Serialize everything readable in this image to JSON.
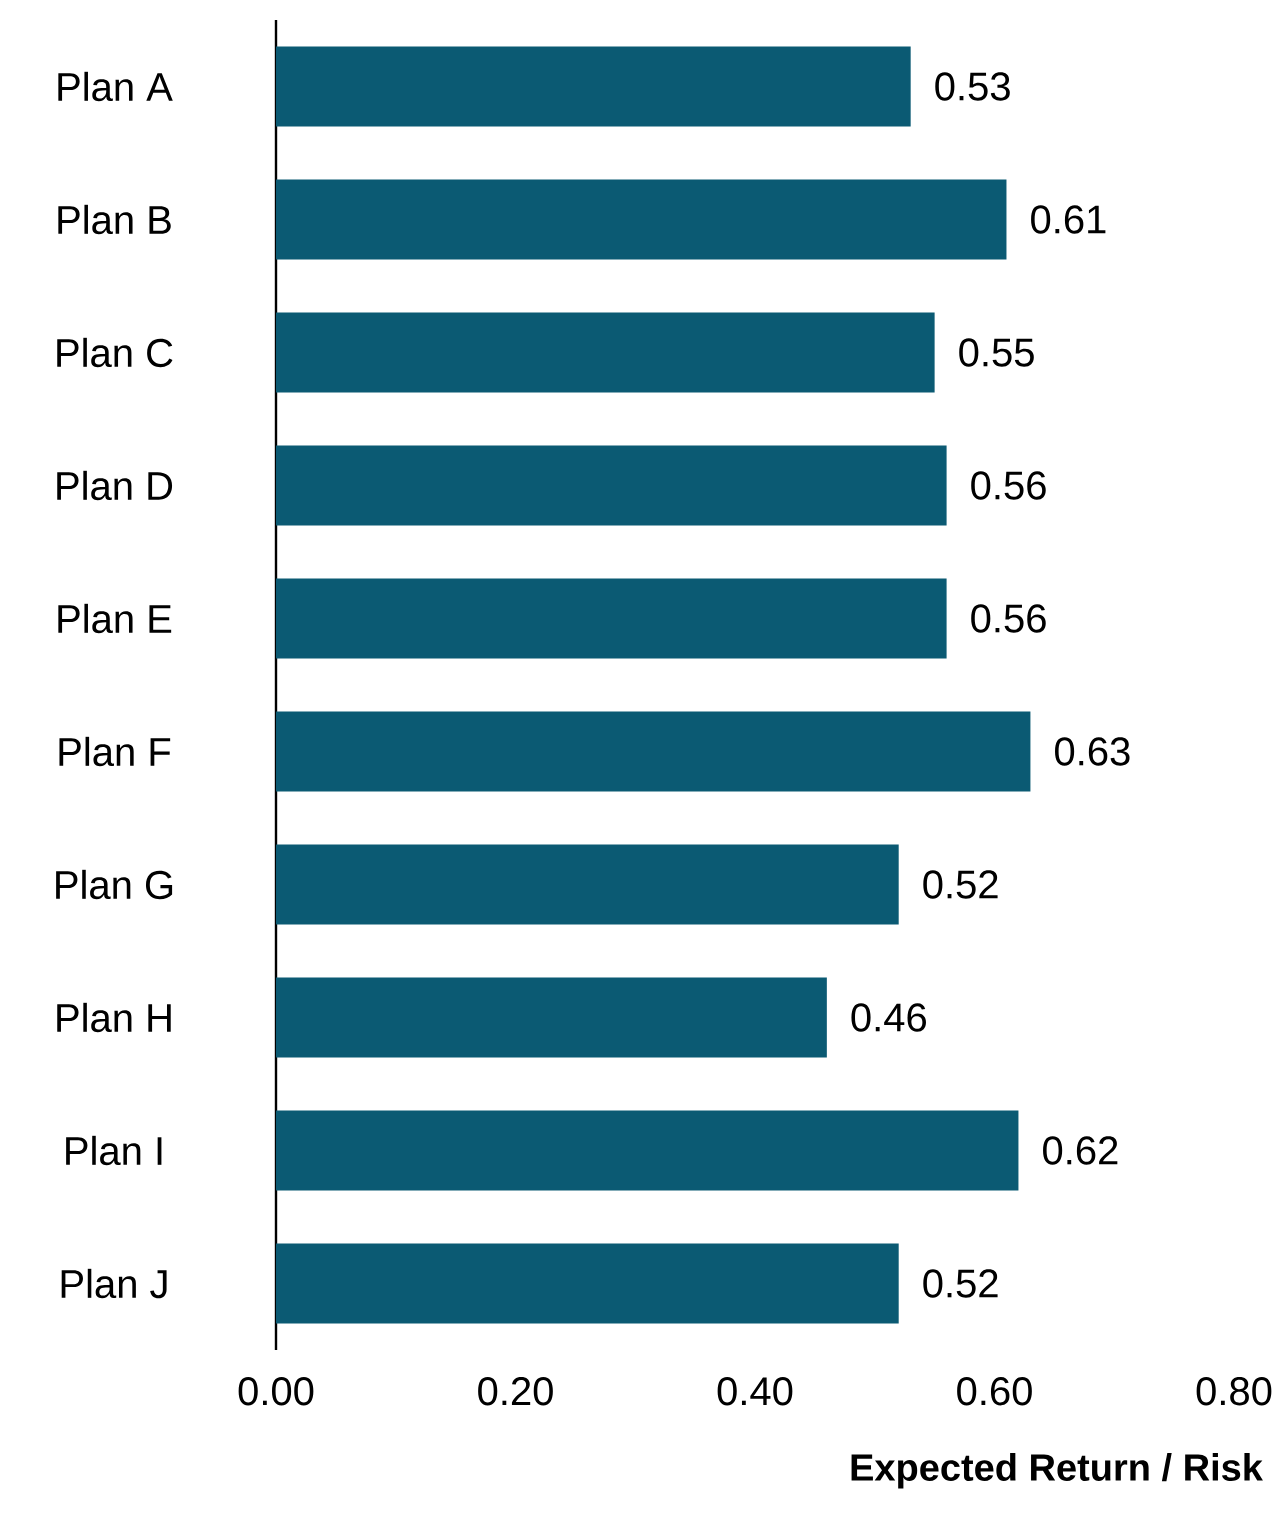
{
  "chart_data": {
    "type": "bar",
    "orientation": "horizontal",
    "xlabel": "Expected Return / Risk",
    "categories": [
      "Plan A",
      "Plan B",
      "Plan C",
      "Plan D",
      "Plan E",
      "Plan F",
      "Plan G",
      "Plan H",
      "Plan I",
      "Plan J"
    ],
    "values": [
      0.53,
      0.61,
      0.55,
      0.56,
      0.56,
      0.63,
      0.52,
      0.46,
      0.62,
      0.52
    ],
    "value_labels": [
      "0.53",
      "0.61",
      "0.55",
      "0.56",
      "0.56",
      "0.63",
      "0.52",
      "0.46",
      "0.62",
      "0.52"
    ],
    "color": "#0b5a73",
    "xlim": [
      0,
      0.8
    ],
    "xticks": [
      {
        "value": 0,
        "label": "0.00"
      },
      {
        "value": 0.2,
        "label": "0.20"
      },
      {
        "value": 0.4,
        "label": "0.40"
      },
      {
        "value": 0.6,
        "label": "0.60"
      },
      {
        "value": 0.8,
        "label": "0.80"
      }
    ]
  }
}
